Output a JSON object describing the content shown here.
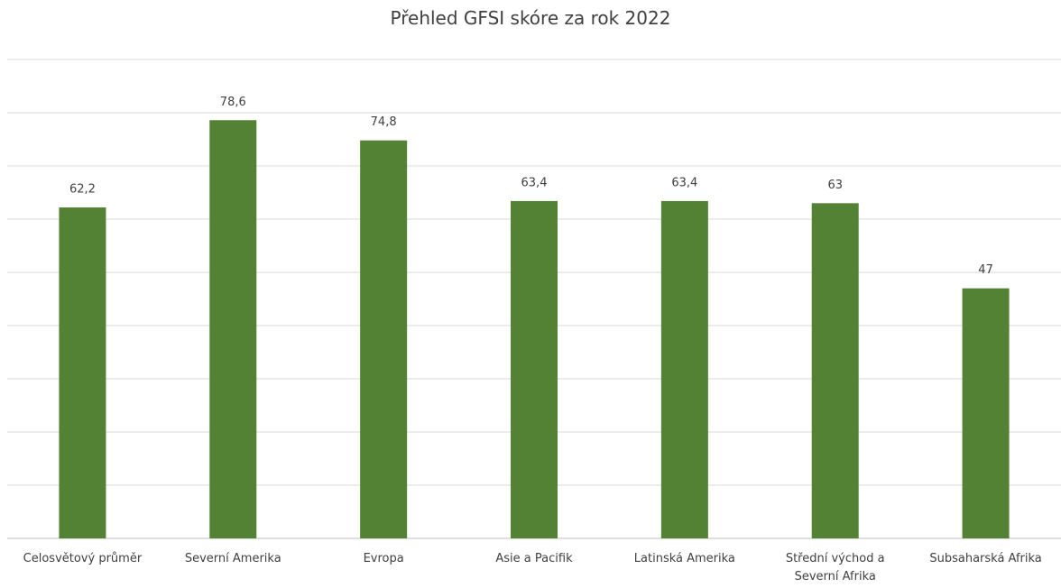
{
  "chart_data": {
    "type": "bar",
    "title": "Přehled GFSI skóre za rok 2022",
    "categories": [
      "Celosvětový průměr",
      "Severní Amerika",
      "Evropa",
      "Asie a Pacifik",
      "Latinská Amerika",
      "Střední východ a Severní Afrika",
      "Subsaharská Afrika"
    ],
    "values": [
      62.2,
      78.6,
      74.8,
      63.4,
      63.4,
      63,
      47
    ],
    "value_labels": [
      "62,2",
      "78,6",
      "74,8",
      "63,4",
      "63,4",
      "63",
      "47"
    ],
    "color": "#548235",
    "ylim": [
      0,
      90
    ],
    "yticks": [
      0,
      10,
      20,
      30,
      40,
      50,
      60,
      70,
      80,
      90
    ],
    "grid": true
  }
}
